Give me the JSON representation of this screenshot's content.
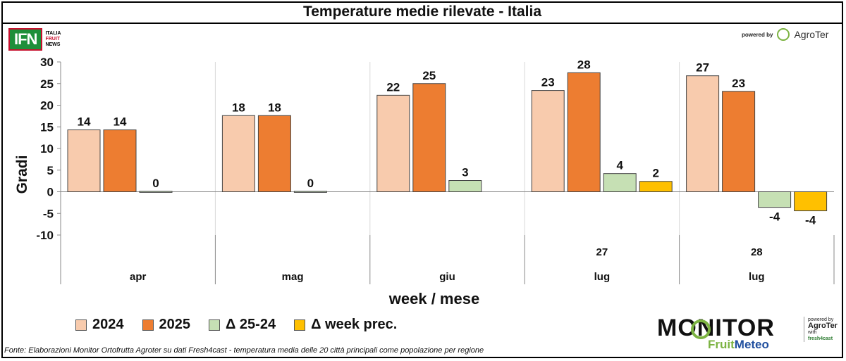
{
  "header": {
    "title": "Temperature medie rilevate - Italia",
    "ifn_logo": {
      "mark": "IFN",
      "line1": "ITALIA",
      "line2": "FRUIT",
      "line3": "NEWS"
    },
    "powered_by": {
      "label": "powered by",
      "brand": "AgroTer"
    }
  },
  "chart_data": {
    "type": "bar",
    "title": "Temperature medie rilevate - Italia",
    "xlabel": "week / mese",
    "ylabel": "Gradi",
    "ylim": [
      -10,
      30
    ],
    "yticks": [
      30,
      25,
      20,
      15,
      10,
      5,
      0,
      -5,
      -10
    ],
    "grid": true,
    "legend_position": "bottom-left",
    "categories": [
      {
        "week": "",
        "month": "apr"
      },
      {
        "week": "",
        "month": "mag"
      },
      {
        "week": "",
        "month": "giu"
      },
      {
        "week": "27",
        "month": "lug"
      },
      {
        "week": "28",
        "month": "lug"
      }
    ],
    "series": [
      {
        "name": "2024",
        "color": "#f8cbad",
        "values": [
          14.3,
          17.6,
          22.3,
          23.4,
          26.8
        ],
        "labels": [
          "14",
          "18",
          "22",
          "23",
          "27"
        ]
      },
      {
        "name": "2025",
        "color": "#ed7d31",
        "values": [
          14.3,
          17.6,
          25.0,
          27.5,
          23.2
        ],
        "labels": [
          "14",
          "18",
          "25",
          "28",
          "23"
        ]
      },
      {
        "name": "Δ 25-24",
        "color": "#c6e0b4",
        "values": [
          0.1,
          0.1,
          2.6,
          4.2,
          -3.6
        ],
        "labels": [
          "0",
          "0",
          "3",
          "4",
          "-4"
        ]
      },
      {
        "name": "Δ week prec.",
        "color": "#ffc000",
        "values": [
          null,
          null,
          null,
          2.4,
          -4.4
        ],
        "labels": [
          "",
          "",
          "",
          "2",
          "-4"
        ]
      }
    ]
  },
  "source_note": "Fonte: Elaborazioni Monitor Ortofrutta Agroter su dati Fresh4cast - temperatura media delle 20 città principali come popolazione per regione",
  "monitor_logo": {
    "word": "MONITOR",
    "fruit": "Fruit",
    "meteo": "Meteo",
    "powered": "powered by",
    "brand": "AgroTer",
    "with": "with",
    "partner": "fresh4cast"
  }
}
